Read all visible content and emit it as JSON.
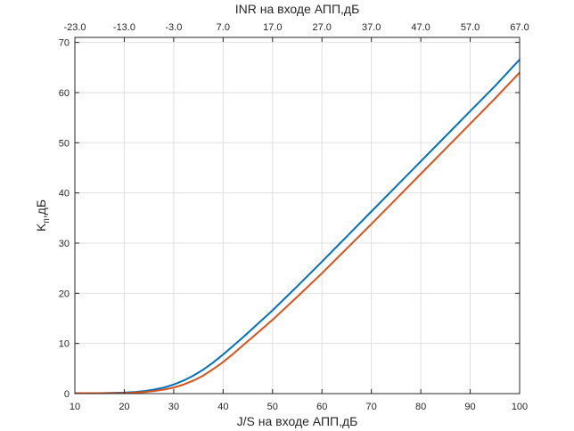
{
  "chart_data": {
    "type": "line",
    "xlabel": "J/S на входе АПП,дБ",
    "ylabel_main": "K",
    "ylabel_sub": "п",
    "ylabel_tail": ",дБ",
    "top_xlabel": "INR на входе АПП,дБ",
    "xlim": [
      10,
      100
    ],
    "ylim": [
      0,
      71
    ],
    "grid": true,
    "x_ticks": [
      "10",
      "20",
      "30",
      "40",
      "50",
      "60",
      "70",
      "80",
      "90",
      "100"
    ],
    "x_tick_values": [
      10,
      20,
      30,
      40,
      50,
      60,
      70,
      80,
      90,
      100
    ],
    "y_ticks": [
      "0",
      "10",
      "20",
      "30",
      "40",
      "50",
      "60",
      "70"
    ],
    "y_tick_values": [
      0,
      10,
      20,
      30,
      40,
      50,
      60,
      70
    ],
    "top_ticks": [
      "-23.0",
      "-13.0",
      "-3.0",
      "7.0",
      "17.0",
      "27.0",
      "37.0",
      "47.0",
      "57.0",
      "67.0"
    ],
    "top_tick_positions": [
      10,
      20,
      30,
      40,
      50,
      60,
      70,
      80,
      90,
      100
    ],
    "series": [
      {
        "color": "#0072BD",
        "x": [
          10,
          15,
          20,
          22,
          24,
          26,
          28,
          30,
          32,
          34,
          36,
          38,
          40,
          42,
          44,
          46,
          48,
          50,
          55,
          60,
          65,
          70,
          75,
          80,
          85,
          90,
          95,
          100
        ],
        "y": [
          0.1,
          0.1,
          0.2,
          0.3,
          0.5,
          0.8,
          1.2,
          1.8,
          2.6,
          3.6,
          4.8,
          6.2,
          7.8,
          9.5,
          11.2,
          13.0,
          14.8,
          16.6,
          21.4,
          26.3,
          31.3,
          36.3,
          41.3,
          46.3,
          51.3,
          56.3,
          61.3,
          66.6
        ]
      },
      {
        "color": "#D95319",
        "x": [
          10,
          15,
          20,
          22,
          24,
          26,
          28,
          30,
          32,
          34,
          36,
          38,
          40,
          42,
          44,
          46,
          48,
          50,
          55,
          60,
          65,
          70,
          75,
          80,
          85,
          90,
          95,
          100
        ],
        "y": [
          0.1,
          0.1,
          0.1,
          0.2,
          0.3,
          0.5,
          0.8,
          1.2,
          1.8,
          2.6,
          3.6,
          4.9,
          6.3,
          7.9,
          9.6,
          11.3,
          13.0,
          14.7,
          19.3,
          24.0,
          28.9,
          33.8,
          38.8,
          43.8,
          48.8,
          53.8,
          58.8,
          64.0
        ]
      }
    ]
  }
}
